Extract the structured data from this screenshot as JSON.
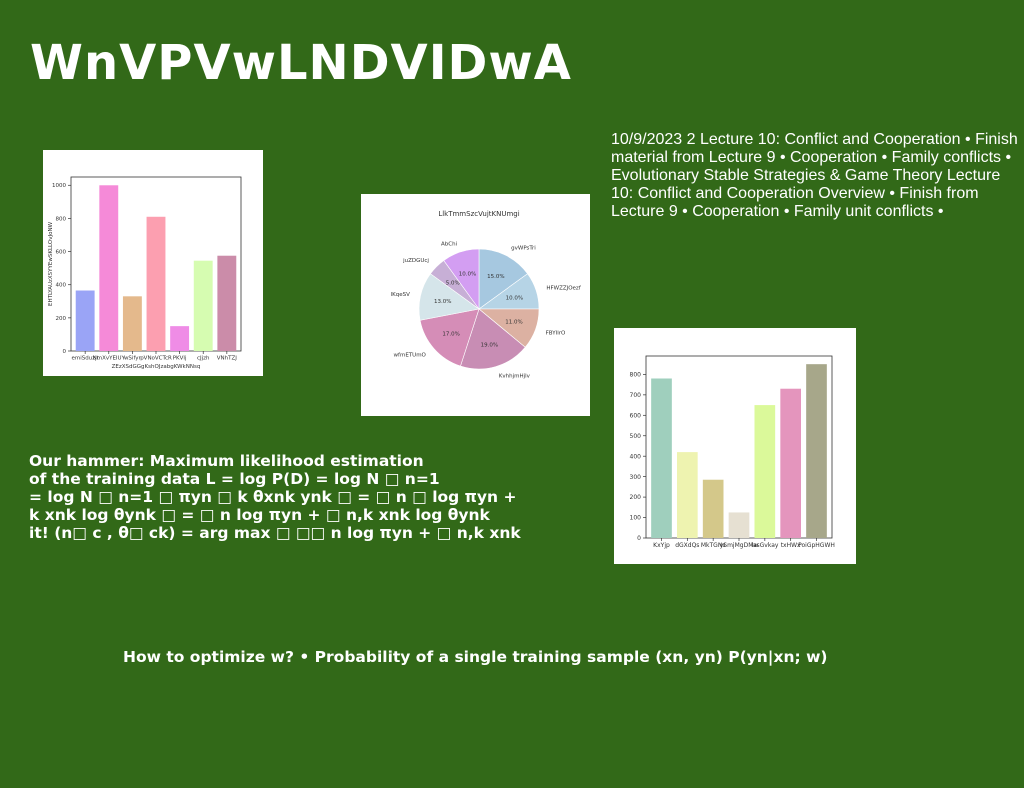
{
  "slide": {
    "title": "WnVPVwLNDVIDwA",
    "notes": "10/9/2023 2 Lecture 10: Conflict and Cooperation • Finish material from Lecture 9 • Cooperation • Family conflicts • Evolutionary Stable Strategies & Game Theory Lecture 10: Conflict and Cooperation Overview • Finish from Lecture 9 • Cooperation • Family unit conflicts •",
    "body_lines": [
      "Our hammer: Maximum likelihood estimation",
      "of the training data L = log P(D) = log N □ n=1",
      "= log N □ n=1 □ πyn □ k θxnk ynk □ = □ n □ log πyn +",
      "k xnk log θynk □ = □ n log πyn + □ n,k xnk log θynk",
      "it! (n□ c , θ□ ck) = arg max □ □□ n log πyn + □ n,k xnk"
    ],
    "bottom_text": "How to optimize w? • Probability of a single training sample (xn, yn) P(yn|xn; w)"
  },
  "chart_data": [
    {
      "type": "bar",
      "title": "",
      "xlabel": "ZEzXSdGGgKshOJzabgKWkNNsq",
      "ylabel": "EHTLYAUzXSYYEwSKLLOvJoNW",
      "categories": [
        "emiSduzjt",
        "NmXvYEIUY",
        "wSifyr",
        "pVNoVCTcR",
        "PKVlj",
        "cJjzh",
        "VNhTZJ"
      ],
      "values": [
        365,
        1000,
        330,
        810,
        150,
        545,
        575
      ],
      "colors": [
        "#9aa4f6",
        "#f58ad8",
        "#e4b98c",
        "#fc9fb0",
        "#ef8ce6",
        "#d6fcb1",
        "#cb8ca9"
      ],
      "ylim": [
        0,
        1050
      ],
      "yticks": [
        0,
        200,
        400,
        600,
        800,
        1000
      ]
    },
    {
      "type": "pie",
      "title": "LlkTmmSzcVujtKNUmgi",
      "labels": [
        "gvWPsTri",
        "HFWZZJOezf",
        "FBYIlrO",
        "KvhhjmHjlv",
        "wfmETUmO",
        "lKqeSV",
        "juZDGUcj",
        "AbChi"
      ],
      "values": [
        15.0,
        10.0,
        11.0,
        19.0,
        17.0,
        13.0,
        5.0,
        10.0
      ],
      "pct_labels": [
        "15.0%",
        "10.0%",
        "11.0%",
        "19.0%",
        "17.0%",
        "13.0%",
        "5.0%",
        "10.0%"
      ],
      "colors": [
        "#a6c8e0",
        "#b6d4e6",
        "#dcb1a2",
        "#c88db4",
        "#d58db7",
        "#d5e5ea",
        "#c7afd6",
        "#d39ef2"
      ]
    },
    {
      "type": "bar",
      "title": "",
      "xlabel": "",
      "ylabel": "",
      "categories": [
        "KxYjp",
        "dGXdQs",
        "MkTGNs",
        "ySmjMgDMw",
        "lasGvkay",
        "txHWx",
        "PoiGpHGWH"
      ],
      "values": [
        780,
        420,
        285,
        125,
        650,
        730,
        850
      ],
      "colors": [
        "#9fcfbd",
        "#eef3b0",
        "#d4c88a",
        "#e6e0d2",
        "#dbf99a",
        "#e495bd",
        "#a7a78a"
      ],
      "ylim": [
        0,
        890
      ],
      "yticks": [
        0,
        100,
        200,
        300,
        400,
        500,
        600,
        700,
        800
      ]
    }
  ]
}
